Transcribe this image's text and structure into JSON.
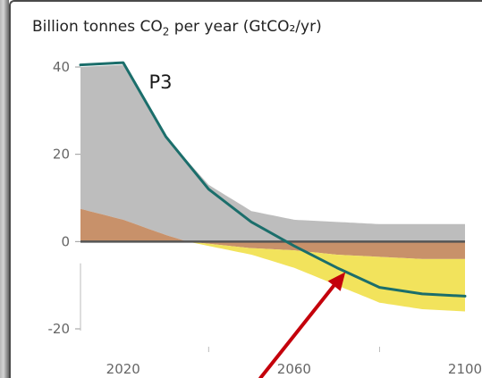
{
  "chart_data": {
    "type": "area",
    "title": "Billion tonnes CO₂ per year (GtCO₂/yr)",
    "xlabel": "",
    "ylabel": "",
    "xlim": [
      2010,
      2100
    ],
    "ylim": [
      -20,
      40
    ],
    "x_ticks": [
      {
        "value": 2020,
        "label": "2020"
      },
      {
        "value": 2060,
        "label": "2060"
      },
      {
        "value": 2100,
        "label": "2100"
      }
    ],
    "y_ticks": [
      {
        "value": 40,
        "label": "40"
      },
      {
        "value": 20,
        "label": "20"
      },
      {
        "value": 0,
        "label": "0"
      },
      {
        "value": -20,
        "label": "-20"
      }
    ],
    "x_minor_ticks": [
      2040,
      2080
    ],
    "series_label": "P3",
    "series_label_at": {
      "x": 2026,
      "y": 38
    },
    "bands": [
      {
        "color": "#bdbdbd",
        "upper": [
          [
            2010,
            40
          ],
          [
            2020,
            40.5
          ],
          [
            2030,
            24
          ],
          [
            2040,
            13
          ],
          [
            2050,
            7
          ],
          [
            2060,
            5
          ],
          [
            2070,
            4.5
          ],
          [
            2080,
            4
          ],
          [
            2090,
            4
          ],
          [
            2100,
            4
          ]
        ],
        "lower_ref": "brown_upper"
      },
      {
        "color": "#c8916a",
        "upper": [
          [
            2010,
            7.5
          ],
          [
            2020,
            5
          ],
          [
            2030,
            1.5
          ],
          [
            2035,
            0
          ],
          [
            2100,
            0
          ]
        ],
        "lower": [
          [
            2010,
            0
          ],
          [
            2035,
            0
          ],
          [
            2040,
            -0.5
          ],
          [
            2050,
            -1.5
          ],
          [
            2060,
            -2
          ],
          [
            2070,
            -3
          ],
          [
            2080,
            -3.5
          ],
          [
            2090,
            -4
          ],
          [
            2100,
            -4
          ]
        ]
      },
      {
        "color": "#f2e35c",
        "upper": [
          [
            2035,
            0
          ],
          [
            2040,
            -0.5
          ],
          [
            2050,
            -1.5
          ],
          [
            2060,
            -2
          ],
          [
            2070,
            -3
          ],
          [
            2080,
            -3.5
          ],
          [
            2090,
            -4
          ],
          [
            2100,
            -4
          ]
        ],
        "lower": [
          [
            2035,
            0
          ],
          [
            2040,
            -1
          ],
          [
            2050,
            -3
          ],
          [
            2060,
            -6
          ],
          [
            2070,
            -10
          ],
          [
            2080,
            -14
          ],
          [
            2090,
            -15.5
          ],
          [
            2100,
            -16
          ]
        ]
      }
    ],
    "line": {
      "name": "P3",
      "color": "#1b6e6b",
      "points": [
        [
          2010,
          40.5
        ],
        [
          2020,
          41
        ],
        [
          2030,
          24
        ],
        [
          2040,
          12
        ],
        [
          2050,
          4.5
        ],
        [
          2060,
          -1
        ],
        [
          2070,
          -6
        ],
        [
          2080,
          -10.5
        ],
        [
          2090,
          -12
        ],
        [
          2100,
          -12.5
        ]
      ]
    },
    "zero_line_color": "#555555",
    "annotation_arrow": {
      "color": "#c4000b",
      "points_to": {
        "x": 2072,
        "y": -7
      }
    }
  }
}
